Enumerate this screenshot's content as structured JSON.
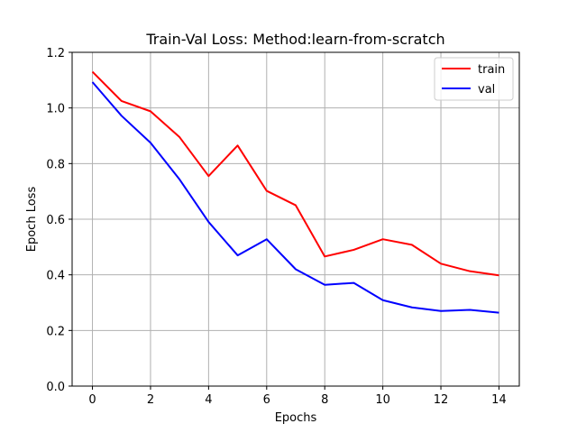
{
  "chart_data": {
    "type": "line",
    "title": "Train-Val Loss: Method:learn-from-scratch",
    "xlabel": "Epochs",
    "ylabel": "Epoch Loss",
    "xlim": [
      -0.7,
      14.7
    ],
    "ylim": [
      0.0,
      1.2
    ],
    "xticks": [
      0,
      2,
      4,
      6,
      8,
      10,
      12,
      14
    ],
    "xtick_labels": [
      "0",
      "2",
      "4",
      "6",
      "8",
      "10",
      "12",
      "14"
    ],
    "yticks": [
      0.0,
      0.2,
      0.4,
      0.6,
      0.8,
      1.0,
      1.2
    ],
    "ytick_labels": [
      "0.0",
      "0.2",
      "0.4",
      "0.6",
      "0.8",
      "1.0",
      "1.2"
    ],
    "grid": true,
    "legend_position": "top-right",
    "x": [
      0,
      1,
      2,
      3,
      4,
      5,
      6,
      7,
      8,
      9,
      10,
      11,
      12,
      13,
      14
    ],
    "series": [
      {
        "name": "train",
        "color": "#ff0000",
        "values": [
          1.13,
          1.025,
          0.988,
          0.895,
          0.755,
          0.865,
          0.702,
          0.65,
          0.466,
          0.49,
          0.528,
          0.508,
          0.44,
          0.413,
          0.398
        ]
      },
      {
        "name": "val",
        "color": "#0000ff",
        "values": [
          1.093,
          0.972,
          0.875,
          0.743,
          0.59,
          0.47,
          0.528,
          0.42,
          0.364,
          0.371,
          0.309,
          0.283,
          0.27,
          0.274,
          0.264
        ]
      }
    ]
  }
}
